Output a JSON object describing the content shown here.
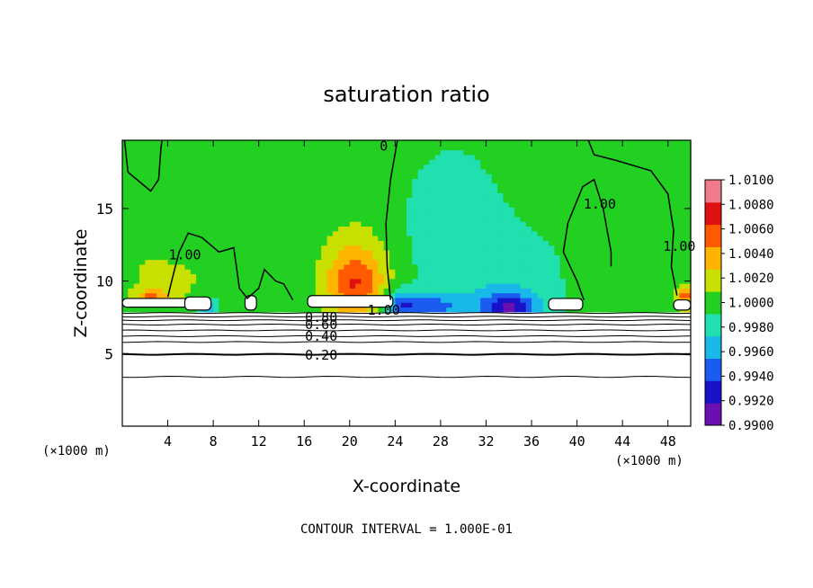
{
  "chart_data": {
    "type": "heatmap",
    "title": "saturation ratio",
    "xlabel": "X-coordinate",
    "ylabel": "Z-coordinate",
    "x_unit": "(×1000 m)",
    "y_unit": "(×1000 m)",
    "xlim": [
      0,
      50
    ],
    "ylim": [
      0,
      19.7
    ],
    "x_ticks": [
      4,
      8,
      12,
      16,
      20,
      24,
      28,
      32,
      36,
      40,
      44,
      48
    ],
    "y_ticks": [
      5,
      10,
      15
    ],
    "colorbar": {
      "levels": [
        0.99,
        0.992,
        0.994,
        0.996,
        0.998,
        1.0,
        1.002,
        1.004,
        1.006,
        1.008,
        1.01
      ],
      "labels": [
        "0.9900",
        "0.9920",
        "0.9940",
        "0.9960",
        "0.9980",
        "1.0000",
        "1.0020",
        "1.0040",
        "1.0060",
        "1.0080",
        "1.0100"
      ],
      "colors": [
        "#6a0fb0",
        "#1a12c8",
        "#1a5cf0",
        "#18b8e8",
        "#20e0b0",
        "#22d022",
        "#c8e000",
        "#ffb400",
        "#ff5a00",
        "#e01010",
        "#f07a8a"
      ]
    },
    "contour_interval": "CONTOUR INTERVAL = 1.000E-01",
    "contour_labels": [
      {
        "text": "0.20",
        "x": 17.5,
        "y": 4.9
      },
      {
        "text": "0.40",
        "x": 17.5,
        "y": 6.2
      },
      {
        "text": "0.60",
        "x": 17.5,
        "y": 7.0
      },
      {
        "text": "0.80",
        "x": 17.5,
        "y": 7.5
      },
      {
        "text": "1.00",
        "x": 23,
        "y": 8.0
      },
      {
        "text": "1.00",
        "x": 5.5,
        "y": 11.8
      },
      {
        "text": "1.00",
        "x": 42,
        "y": 15.3
      },
      {
        "text": "1.00",
        "x": 49,
        "y": 12.4
      },
      {
        "text": "0",
        "x": 23,
        "y": 19.3
      }
    ],
    "blobs": [
      {
        "x": 2.5,
        "y": 10.5,
        "sx": 2.5,
        "sy": 2.5,
        "v": 0.0014
      },
      {
        "x": 5.5,
        "y": 10.0,
        "sx": 1.8,
        "sy": 1.6,
        "v": 0.0012
      },
      {
        "x": 8.5,
        "y": 12.0,
        "sx": 3.0,
        "sy": 3.5,
        "v": 0.0002
      },
      {
        "x": 20.5,
        "y": 9.8,
        "sx": 2.6,
        "sy": 2.4,
        "v": 0.0068
      },
      {
        "x": 20.5,
        "y": 12.5,
        "sx": 3.0,
        "sy": 3.0,
        "v": 0.0012
      },
      {
        "x": 29,
        "y": 14.0,
        "sx": 4.0,
        "sy": 5.0,
        "v": -0.0022
      },
      {
        "x": 34,
        "y": 10.0,
        "sx": 5.0,
        "sy": 4.0,
        "v": -0.002
      },
      {
        "x": 34,
        "y": 8.2,
        "sx": 2.5,
        "sy": 1.0,
        "v": -0.0075
      },
      {
        "x": 27,
        "y": 8.3,
        "sx": 3.0,
        "sy": 0.9,
        "v": -0.005
      },
      {
        "x": 24.5,
        "y": 8.5,
        "sx": 1.5,
        "sy": 0.9,
        "v": -0.0045
      },
      {
        "x": 7.5,
        "y": 8.3,
        "sx": 1.0,
        "sy": 0.6,
        "v": -0.004
      },
      {
        "x": 44,
        "y": 11.0,
        "sx": 3.0,
        "sy": 3.5,
        "v": 0.0004
      },
      {
        "x": 47.5,
        "y": 14.0,
        "sx": 2.5,
        "sy": 4.0,
        "v": -0.0006
      },
      {
        "x": 49.5,
        "y": 9.0,
        "sx": 0.8,
        "sy": 0.8,
        "v": 0.006
      },
      {
        "x": 2.5,
        "y": 9.0,
        "sx": 1.5,
        "sy": 0.5,
        "v": 0.0045
      }
    ],
    "cloud_cores": [
      {
        "x0": 16.3,
        "x1": 23.8,
        "y0": 8.2,
        "y1": 9.0
      },
      {
        "x0": 0.0,
        "x1": 5.8,
        "y0": 8.2,
        "y1": 8.8
      },
      {
        "x0": 5.5,
        "x1": 7.8,
        "y0": 8.0,
        "y1": 8.9
      },
      {
        "x0": 10.8,
        "x1": 11.8,
        "y0": 8.0,
        "y1": 9.0
      },
      {
        "x0": 37.5,
        "x1": 40.5,
        "y0": 8.0,
        "y1": 8.8
      },
      {
        "x0": 48.5,
        "x1": 50.0,
        "y0": 8.0,
        "y1": 8.7
      }
    ]
  }
}
